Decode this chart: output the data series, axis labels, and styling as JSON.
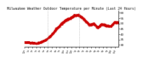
{
  "title": "Milwaukee Weather Outdoor Temperature per Minute (Last 24 Hours)",
  "title_fontsize": 3.5,
  "line_color": "#cc0000",
  "background_color": "#ffffff",
  "plot_bg_color": "#ffffff",
  "grid_color": "#999999",
  "ylim": [
    28,
    62
  ],
  "yticks": [
    30,
    35,
    40,
    45,
    50,
    55,
    60
  ],
  "ytick_labels": [
    "30",
    "35",
    "40",
    "45",
    "50",
    "55",
    "60"
  ],
  "vlines": [
    360,
    840
  ],
  "linewidth": 0.6,
  "markersize": 0.7
}
